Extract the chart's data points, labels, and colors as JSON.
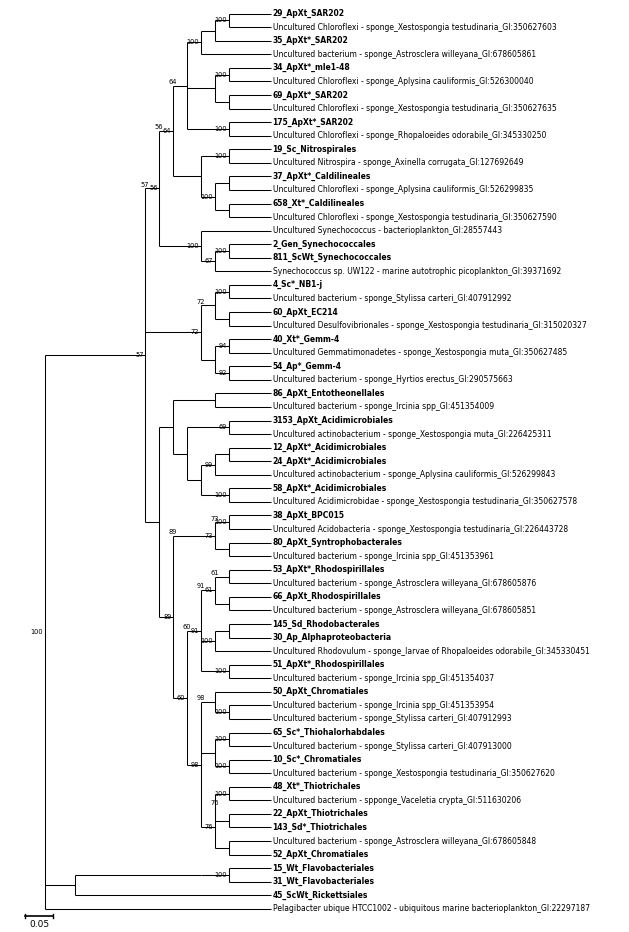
{
  "figsize": [
    6.29,
    9.32
  ],
  "dpi": 100,
  "bg_color": "#ffffff",
  "scale_bar_label": "0.05",
  "n_taxa": 67,
  "taxa": [
    {
      "label": "29_ApXt_SAR202",
      "bold": true,
      "idx": 1
    },
    {
      "label": "Uncultured Chloroflexi - sponge_Xestospongia testudinaria_GI:350627603",
      "bold": false,
      "idx": 2
    },
    {
      "label": "35_ApXt*_SAR202",
      "bold": true,
      "idx": 3
    },
    {
      "label": "Uncultured bacterium - sponge_Astrosclera willeyana_GI:678605861",
      "bold": false,
      "idx": 4
    },
    {
      "label": "34_ApXt*_mle1-48",
      "bold": true,
      "idx": 5
    },
    {
      "label": "Uncultured Chloroflexi - sponge_Aplysina cauliformis_GI:526300040",
      "bold": false,
      "idx": 6
    },
    {
      "label": "69_ApXt*_SAR202",
      "bold": true,
      "idx": 7
    },
    {
      "label": "Uncultured Chloroflexi - sponge_Xestospongia testudinaria_GI:350627635",
      "bold": false,
      "idx": 8
    },
    {
      "label": "175_ApXt*_SAR202",
      "bold": true,
      "idx": 9
    },
    {
      "label": "Uncultured Chloroflexi - sponge_Rhopaloeides odorabile_GI:345330250",
      "bold": false,
      "idx": 10
    },
    {
      "label": "19_Sc_Nitrospirales",
      "bold": true,
      "idx": 11
    },
    {
      "label": "Uncultured Nitrospira - sponge_Axinella corrugata_GI:127692649",
      "bold": false,
      "idx": 12
    },
    {
      "label": "37_ApXt*_Caldilineales",
      "bold": true,
      "idx": 13
    },
    {
      "label": "Uncultured Chloroflexi - sponge_Aplysina cauliformis_GI:526299835",
      "bold": false,
      "idx": 14
    },
    {
      "label": "658_Xt*_Caldilineales",
      "bold": true,
      "idx": 15
    },
    {
      "label": "Uncultured Chloroflexi - sponge_Xestospongia testudinaria_GI:350627590",
      "bold": false,
      "idx": 16
    },
    {
      "label": "Uncultured Synechococcus - bacterioplankton_GI:28557443",
      "bold": false,
      "idx": 17
    },
    {
      "label": "2_Gen_Synechococcales",
      "bold": true,
      "idx": 18
    },
    {
      "label": "811_ScWt_Synechococcales",
      "bold": true,
      "idx": 19
    },
    {
      "label": "Synechococcus sp. UW122 - marine autotrophic picoplankton_GI:39371692",
      "bold": false,
      "idx": 20
    },
    {
      "label": "4_Sc*_NB1-j",
      "bold": true,
      "idx": 21
    },
    {
      "label": "Uncultured bacterium - sponge_Stylissa carteri_GI:407912992",
      "bold": false,
      "idx": 22
    },
    {
      "label": "60_ApXt_EC214",
      "bold": true,
      "idx": 23
    },
    {
      "label": "Uncultured Desulfovibrionales - sponge_Xestospongia testudinaria_GI:315020327",
      "bold": false,
      "idx": 24
    },
    {
      "label": "40_Xt*_Gemm-4",
      "bold": true,
      "idx": 25
    },
    {
      "label": "Uncultured Gemmatimonadetes - sponge_Xestospongia muta_GI:350627485",
      "bold": false,
      "idx": 26
    },
    {
      "label": "54_Ap*_Gemm-4",
      "bold": true,
      "idx": 27
    },
    {
      "label": "Uncultured bacterium - sponge_Hyrtios erectus_GI:290575663",
      "bold": false,
      "idx": 28
    },
    {
      "label": "86_ApXt_Entotheonellales",
      "bold": true,
      "idx": 29
    },
    {
      "label": "Uncultured bacterium - sponge_Ircinia spp_GI:451354009",
      "bold": false,
      "idx": 30
    },
    {
      "label": "3153_ApXt_Acidimicrobiales",
      "bold": true,
      "idx": 31
    },
    {
      "label": "Uncultured actinobacterium - sponge_Xestospongia muta_GI:226425311",
      "bold": false,
      "idx": 32
    },
    {
      "label": "12_ApXt*_Acidimicrobiales",
      "bold": true,
      "idx": 33
    },
    {
      "label": "24_ApXt*_Acidimicrobiales",
      "bold": true,
      "idx": 34
    },
    {
      "label": "Uncultured actinobacterium - sponge_Aplysina cauliformis_GI:526299843",
      "bold": false,
      "idx": 35
    },
    {
      "label": "58_ApXt*_Acidimicrobiales",
      "bold": true,
      "idx": 36
    },
    {
      "label": "Uncultured Acidimicrobidae - sponge_Xestospongia testudinaria_GI:350627578",
      "bold": false,
      "idx": 37
    },
    {
      "label": "38_ApXt_BPC015",
      "bold": true,
      "idx": 38
    },
    {
      "label": "Uncultured Acidobacteria - sponge_Xestospongia testudinaria_GI:226443728",
      "bold": false,
      "idx": 39
    },
    {
      "label": "80_ApXt_Syntrophobacterales",
      "bold": true,
      "idx": 40
    },
    {
      "label": "Uncultured bacterium - sponge_Ircinia spp_GI:451353961",
      "bold": false,
      "idx": 41
    },
    {
      "label": "53_ApXt*_Rhodospirillales",
      "bold": true,
      "idx": 42
    },
    {
      "label": "Uncultured bacterium - sponge_Astrosclera willeyana_GI:678605876",
      "bold": false,
      "idx": 43
    },
    {
      "label": "66_ApXt_Rhodospirillales",
      "bold": true,
      "idx": 44
    },
    {
      "label": "Uncultured bacterium - sponge_Astrosclera willeyana_GI:678605851",
      "bold": false,
      "idx": 45
    },
    {
      "label": "145_Sd_Rhodobacterales",
      "bold": true,
      "idx": 46
    },
    {
      "label": "30_Ap_Alphaproteobacteria",
      "bold": true,
      "idx": 47
    },
    {
      "label": "Uncultured Rhodovulum - sponge_larvae of Rhopaloeides odorabile_GI:345330451",
      "bold": false,
      "idx": 48
    },
    {
      "label": "51_ApXt*_Rhodospirillales",
      "bold": true,
      "idx": 49
    },
    {
      "label": "Uncultured bacterium - sponge_Ircinia spp_GI:451354037",
      "bold": false,
      "idx": 50
    },
    {
      "label": "50_ApXt_Chromatiales",
      "bold": true,
      "idx": 51
    },
    {
      "label": "Uncultured bacterium - sponge_Ircinia spp_GI:451353954",
      "bold": false,
      "idx": 52
    },
    {
      "label": "Uncultured bacterium - sponge_Stylissa carteri_GI:407912993",
      "bold": false,
      "idx": 53
    },
    {
      "label": "65_Sc*_Thiohalorhabdales",
      "bold": true,
      "idx": 54
    },
    {
      "label": "Uncultured bacterium - sponge_Stylissa carteri_GI:407913000",
      "bold": false,
      "idx": 55
    },
    {
      "label": "10_Sc*_Chromatiales",
      "bold": true,
      "idx": 56
    },
    {
      "label": "Uncultured bacterium - sponge_Xestospongia testudinaria_GI:350627620",
      "bold": false,
      "idx": 57
    },
    {
      "label": "48_Xt*_Thiotrichales",
      "bold": true,
      "idx": 58
    },
    {
      "label": "Uncultured bacterium - spponge_Vaceletia crypta_GI:511630206",
      "bold": false,
      "idx": 59
    },
    {
      "label": "22_ApXt_Thiotrichales",
      "bold": true,
      "idx": 60
    },
    {
      "label": "143_Sd*_Thiotrichales",
      "bold": true,
      "idx": 61
    },
    {
      "label": "Uncultured bacterium - sponge_Astrosclera willeyana_GI:678605848",
      "bold": false,
      "idx": 62
    },
    {
      "label": "52_ApXt_Chromatiales",
      "bold": true,
      "idx": 63
    },
    {
      "label": "15_Wt_Flavobacteriales",
      "bold": true,
      "idx": 64
    },
    {
      "label": "31_Wt_Flavobacteriales",
      "bold": true,
      "idx": 65
    },
    {
      "label": "45_ScWt_Rickettsiales",
      "bold": true,
      "idx": 66
    },
    {
      "label": "Pelagibacter ubique HTCC1002 - ubiquitous marine bacterioplankton_GI:22297187",
      "bold": false,
      "idx": 67
    }
  ],
  "tree_segments": [],
  "bootstrap_labels": []
}
